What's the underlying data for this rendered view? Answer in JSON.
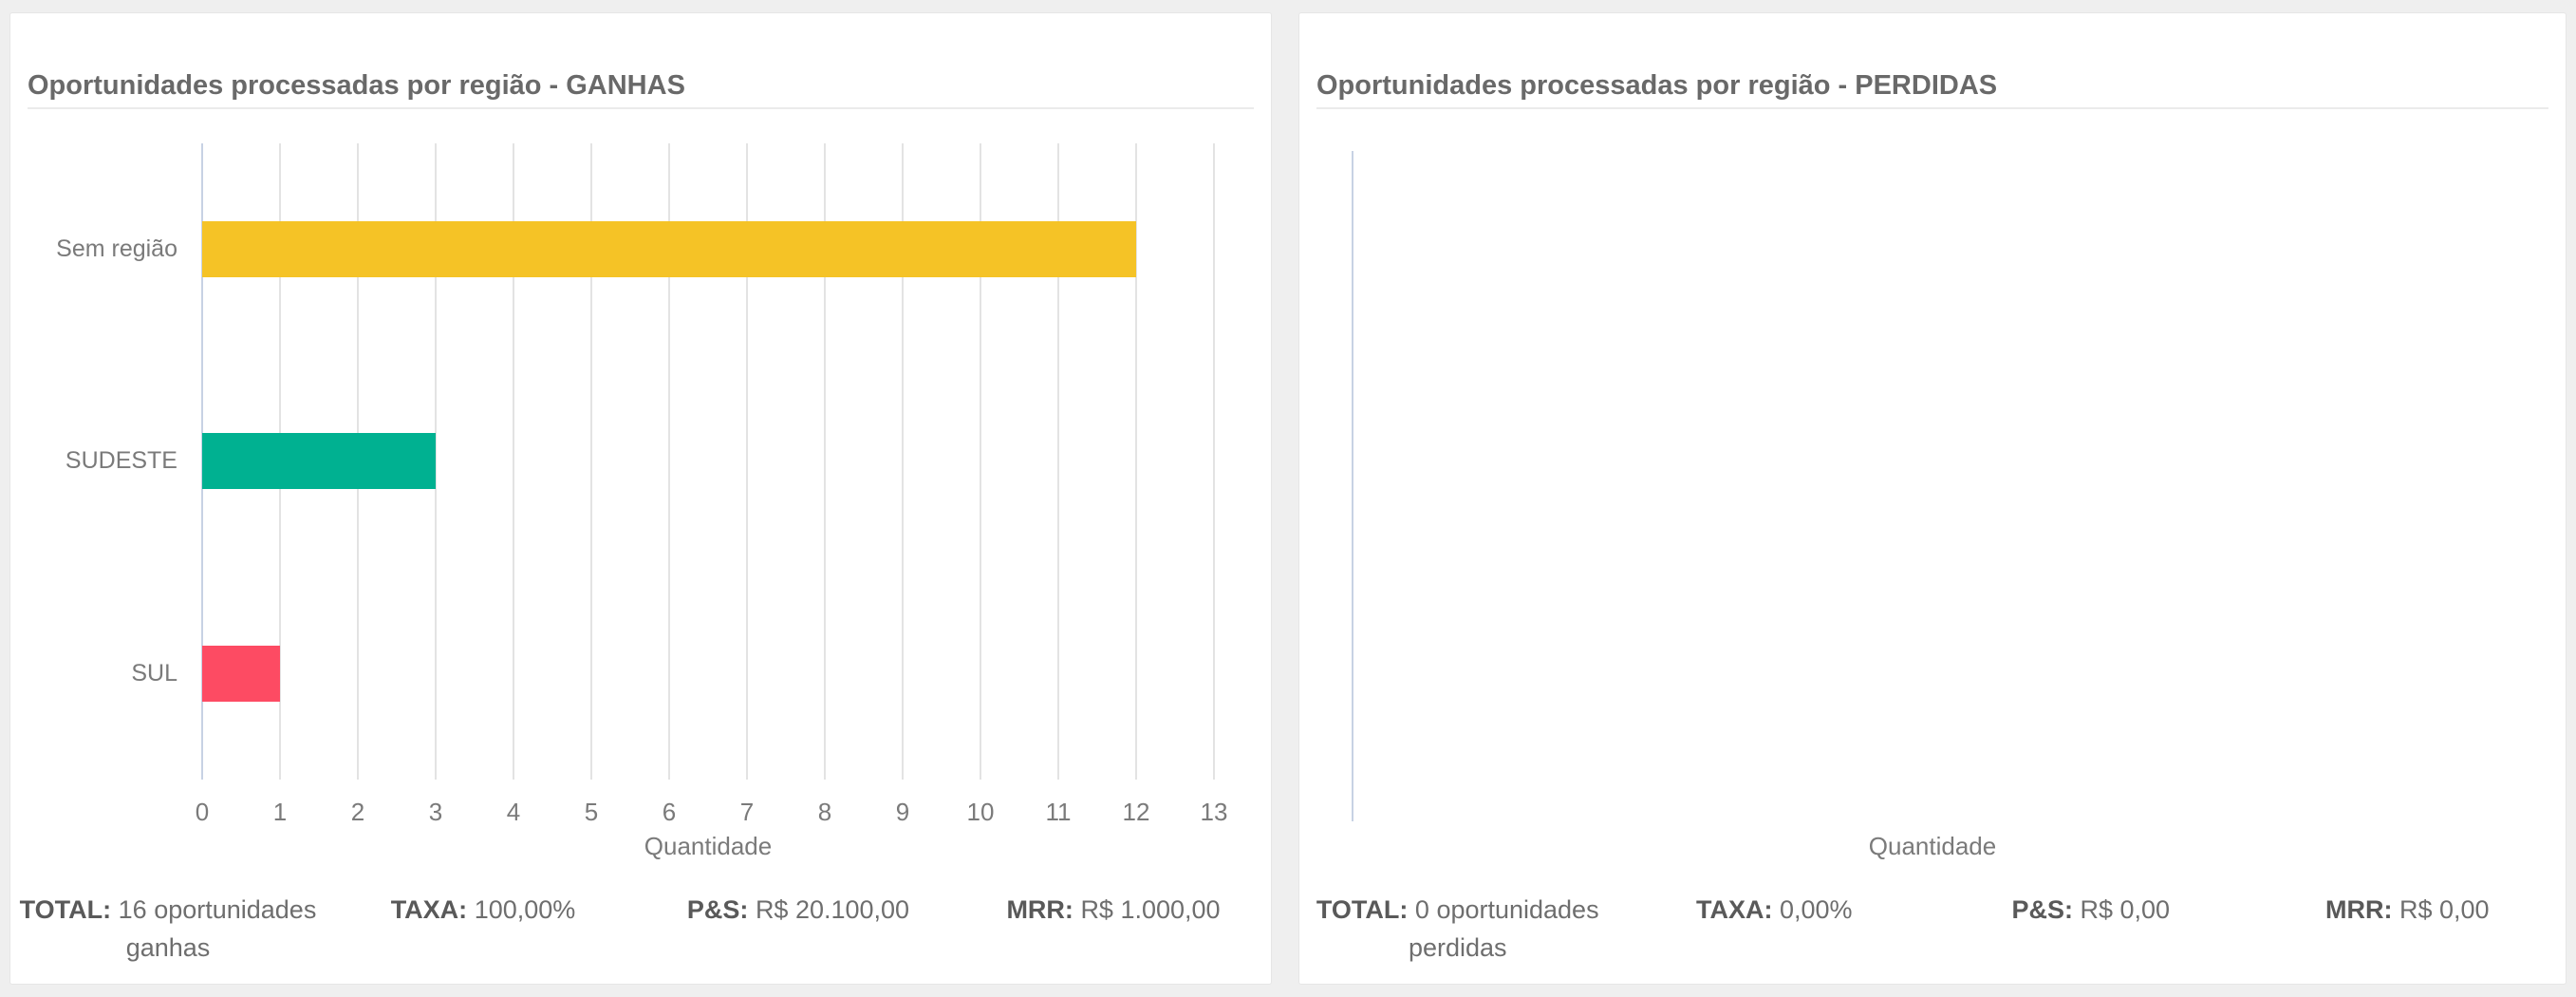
{
  "colors": {
    "page_background": "#EFEFEF",
    "panel_background": "#FFFFFF",
    "title_text": "#696969",
    "axis_text": "#7A7A7A",
    "gridline": "#E3E3E3",
    "axis_zero_line": "#C7D2E4",
    "bar_yellow": "#F5C326",
    "bar_teal": "#00B191",
    "bar_pink": "#FD4B63"
  },
  "panels": [
    {
      "title": "Oportunidades processadas por região - GANHAS",
      "xlabel": "Quantidade",
      "stats": [
        {
          "label": "TOTAL:",
          "value": "16 oportunidades ganhas"
        },
        {
          "label": "TAXA:",
          "value": "100,00%"
        },
        {
          "label": "P&S:",
          "value": "R$ 20.100,00"
        },
        {
          "label": "MRR:",
          "value": "R$ 1.000,00"
        }
      ]
    },
    {
      "title": "Oportunidades processadas por região - PERDIDAS",
      "xlabel": "Quantidade",
      "stats": [
        {
          "label": "TOTAL:",
          "value": "0 oportunidades perdidas"
        },
        {
          "label": "TAXA:",
          "value": "0,00%"
        },
        {
          "label": "P&S:",
          "value": "R$ 0,00"
        },
        {
          "label": "MRR:",
          "value": "R$ 0,00"
        }
      ]
    }
  ],
  "chart_data": [
    {
      "type": "bar",
      "orientation": "horizontal",
      "title": "Oportunidades processadas por região - GANHAS",
      "categories": [
        "Sem região",
        "SUDESTE",
        "SUL"
      ],
      "values": [
        12,
        3,
        1
      ],
      "bar_colors": [
        "#F5C326",
        "#00B191",
        "#FD4B63"
      ],
      "xlabel": "Quantidade",
      "xlim": [
        0,
        13
      ],
      "xticks": [
        0,
        1,
        2,
        3,
        4,
        5,
        6,
        7,
        8,
        9,
        10,
        11,
        12,
        13
      ],
      "grid": true,
      "legend": false
    },
    {
      "type": "bar",
      "orientation": "horizontal",
      "title": "Oportunidades processadas por região - PERDIDAS",
      "categories": [],
      "values": [],
      "bar_colors": [],
      "xlabel": "Quantidade",
      "xlim": null,
      "xticks": [],
      "grid": false,
      "legend": false
    }
  ]
}
